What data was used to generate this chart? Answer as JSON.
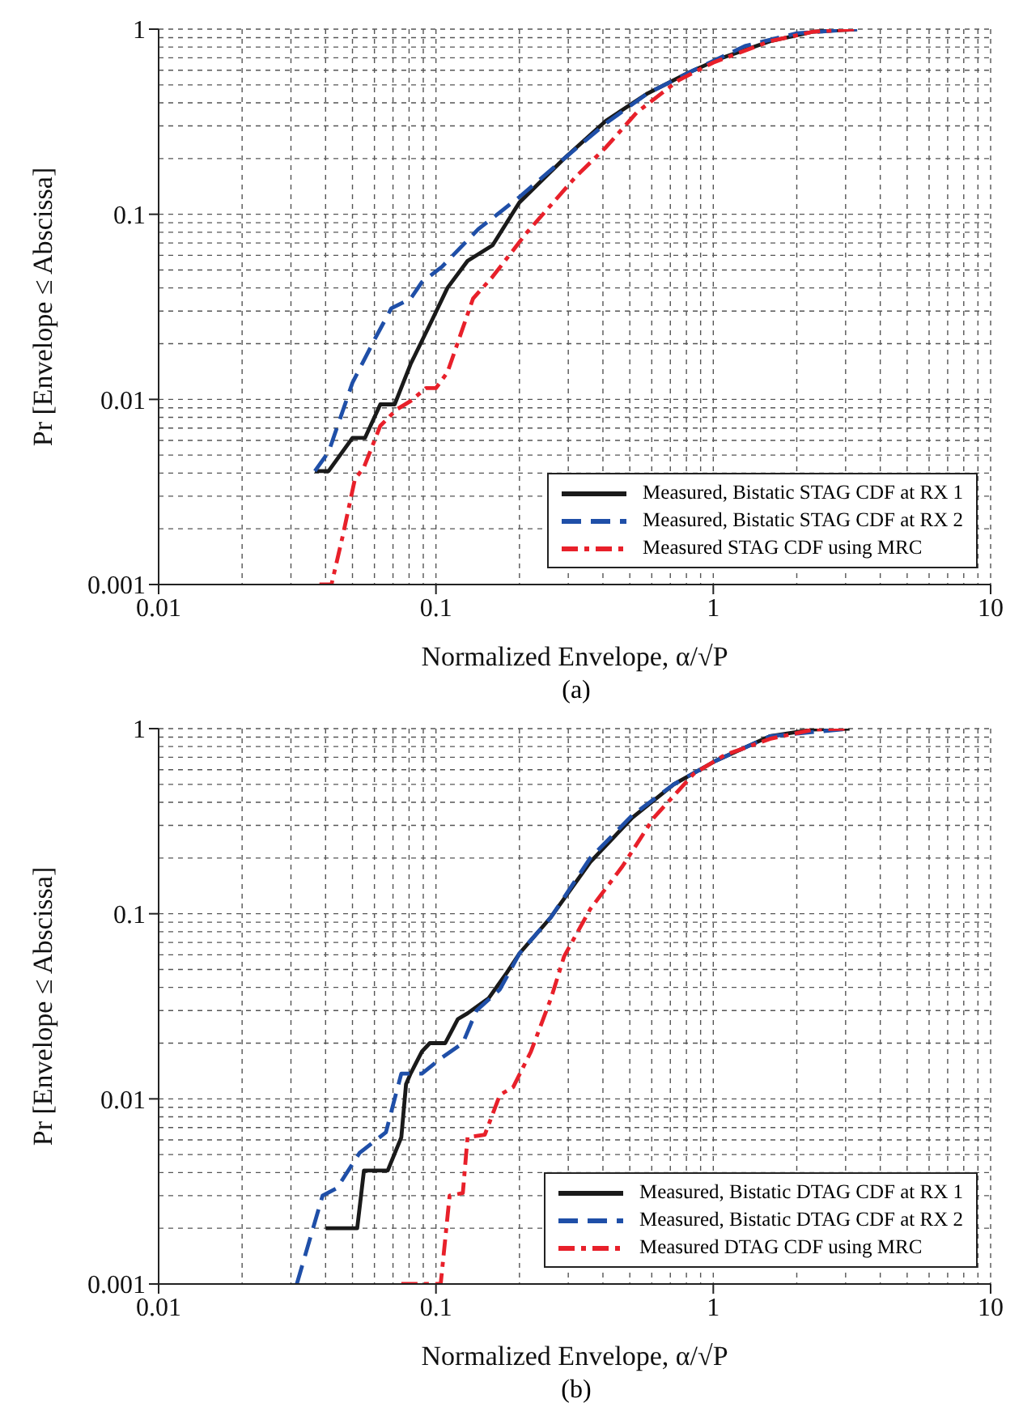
{
  "chart_data": [
    {
      "type": "line",
      "xlabel": "Normalized Envelope, α/√P",
      "ylabel": "Pr [Envelope ≤ Abscissa]",
      "annotations": [
        "(a)"
      ],
      "log": "xy",
      "grid": true,
      "legend": "bottom right",
      "xlim": [
        0.01,
        10
      ],
      "ylim": [
        0.001,
        1
      ],
      "xticks": [
        0.01,
        0.1,
        1,
        10
      ],
      "yticks": [
        0.001,
        0.01,
        0.1,
        1
      ],
      "series": [
        {
          "name": "Measured, Bistatic STAG CDF at RX 1",
          "color": "#1a1a1a",
          "line_style": "solid",
          "x": [
            0.0366,
            0.041,
            0.05,
            0.0555,
            0.063,
            0.071,
            0.081,
            0.097,
            0.11,
            0.13,
            0.16,
            0.2,
            0.29,
            0.41,
            0.58,
            0.81,
            1.05,
            1.6,
            2.3,
            3.3
          ],
          "values": [
            0.0041,
            0.0041,
            0.0062,
            0.0062,
            0.0094,
            0.0094,
            0.0155,
            0.027,
            0.04,
            0.056,
            0.068,
            0.116,
            0.2,
            0.32,
            0.45,
            0.58,
            0.69,
            0.86,
            0.97,
            1
          ]
        },
        {
          "name": "Measured, Bistatic STAG CDF at RX 2",
          "color": "#1f4fa8",
          "line_style": "dashed",
          "x": [
            0.0366,
            0.041,
            0.05,
            0.06,
            0.069,
            0.081,
            0.089,
            0.105,
            0.142,
            0.2,
            0.29,
            0.41,
            0.58,
            0.85,
            1.3,
            2.0,
            3.3
          ],
          "values": [
            0.0041,
            0.0052,
            0.0123,
            0.021,
            0.031,
            0.035,
            0.043,
            0.052,
            0.083,
            0.124,
            0.2,
            0.31,
            0.45,
            0.6,
            0.81,
            0.95,
            1
          ]
        },
        {
          "name": "Measured STAG CDF using MRC",
          "color": "#e8202a",
          "line_style": "dashdot",
          "x": [
            0.038,
            0.042,
            0.046,
            0.051,
            0.055,
            0.063,
            0.072,
            0.081,
            0.092,
            0.1,
            0.11,
            0.136,
            0.16,
            0.19,
            0.21,
            0.25,
            0.32,
            0.41,
            0.53,
            0.75,
            1.0,
            1.6,
            2.3,
            3.3
          ],
          "values": [
            0.001,
            0.001,
            0.0018,
            0.0037,
            0.0043,
            0.0072,
            0.0088,
            0.0098,
            0.0115,
            0.0115,
            0.014,
            0.035,
            0.046,
            0.064,
            0.078,
            0.105,
            0.16,
            0.23,
            0.355,
            0.53,
            0.66,
            0.86,
            0.97,
            1
          ]
        }
      ]
    },
    {
      "type": "line",
      "xlabel": "Normalized Envelope, α/√P",
      "ylabel": "Pr [Envelope ≤ Abscissa]",
      "annotations": [
        "(b)"
      ],
      "log": "xy",
      "grid": true,
      "legend": "bottom right",
      "xlim": [
        0.01,
        10
      ],
      "ylim": [
        0.001,
        1
      ],
      "xticks": [
        0.01,
        0.1,
        1,
        10
      ],
      "yticks": [
        0.001,
        0.01,
        0.1,
        1
      ],
      "series": [
        {
          "name": "Measured, Bistatic DTAG CDF at RX 1",
          "color": "#1a1a1a",
          "line_style": "solid",
          "x": [
            0.04,
            0.052,
            0.055,
            0.067,
            0.075,
            0.078,
            0.081,
            0.089,
            0.095,
            0.108,
            0.12,
            0.13,
            0.155,
            0.18,
            0.2,
            0.26,
            0.36,
            0.51,
            0.72,
            1.02,
            1.6,
            2.3,
            3.1
          ],
          "values": [
            0.002,
            0.002,
            0.0041,
            0.0041,
            0.0062,
            0.012,
            0.0137,
            0.018,
            0.02,
            0.02,
            0.027,
            0.029,
            0.035,
            0.048,
            0.061,
            0.096,
            0.19,
            0.33,
            0.5,
            0.67,
            0.91,
            0.99,
            1
          ]
        },
        {
          "name": "Measured, Bistatic DTAG CDF at RX 2",
          "color": "#1f4fa8",
          "line_style": "dashed",
          "x": [
            0.0315,
            0.039,
            0.044,
            0.053,
            0.066,
            0.075,
            0.089,
            0.105,
            0.125,
            0.14,
            0.17,
            0.2,
            0.26,
            0.36,
            0.51,
            0.72,
            1.02,
            1.6,
            3.1
          ],
          "values": [
            0.001,
            0.003,
            0.0033,
            0.0051,
            0.0066,
            0.0137,
            0.0137,
            0.0167,
            0.02,
            0.03,
            0.039,
            0.061,
            0.096,
            0.2,
            0.34,
            0.5,
            0.67,
            0.91,
            1
          ]
        },
        {
          "name": "Measured DTAG CDF using MRC",
          "color": "#e8202a",
          "line_style": "dashdot",
          "x": [
            0.075,
            0.104,
            0.112,
            0.125,
            0.13,
            0.15,
            0.17,
            0.19,
            0.22,
            0.26,
            0.29,
            0.36,
            0.47,
            0.61,
            0.85,
            1.1,
            1.6,
            2.3,
            3.1
          ],
          "values": [
            0.001,
            0.001,
            0.003,
            0.0031,
            0.0062,
            0.0064,
            0.0105,
            0.0116,
            0.018,
            0.035,
            0.059,
            0.106,
            0.18,
            0.33,
            0.57,
            0.72,
            0.88,
            0.99,
            1
          ]
        }
      ]
    }
  ]
}
